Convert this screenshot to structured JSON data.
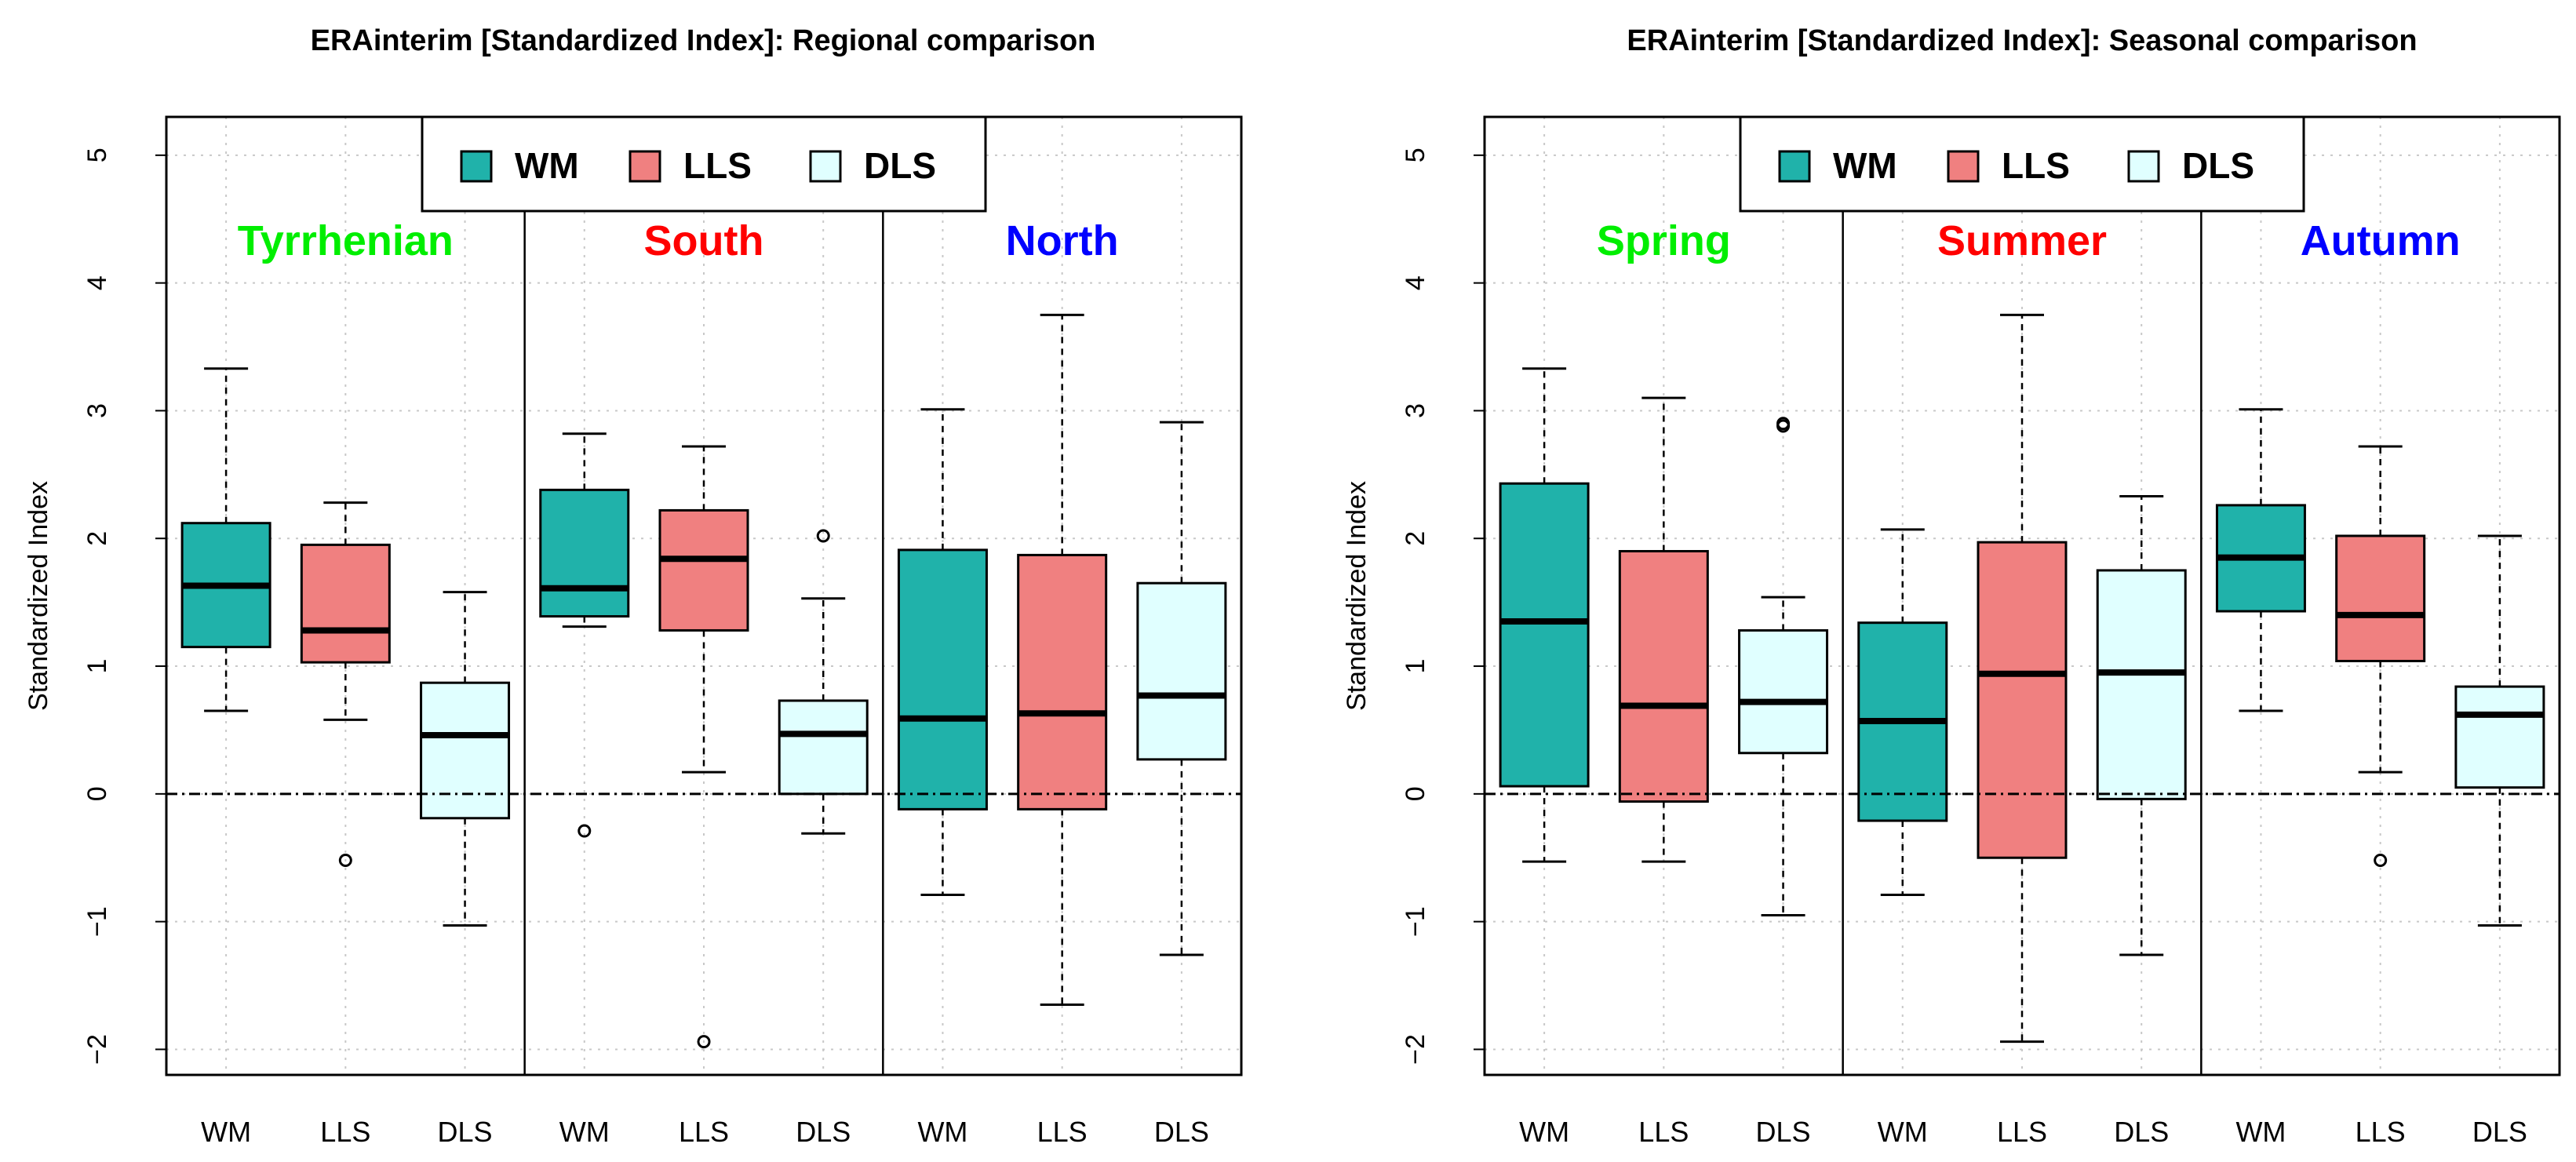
{
  "colors": {
    "WM": "#20b2aa",
    "LLS": "#f08080",
    "DLS": "#e0ffff",
    "green": "#00ee00",
    "red": "#ff0000",
    "blue": "#0000ff"
  },
  "chart_data": [
    {
      "type": "boxplot",
      "title": "ERAinterim [Standardized Index]: Regional comparison",
      "ylabel": "Standardized Index",
      "xlabel": "",
      "ylim": [
        -2.2,
        5.3
      ],
      "yticks": [
        -2,
        -1,
        0,
        1,
        2,
        3,
        4,
        5
      ],
      "ytick_labels": [
        "−2",
        "−1",
        "0",
        "1",
        "2",
        "3",
        "4",
        "5"
      ],
      "grid": true,
      "reference_line": 0,
      "legend": {
        "placement": "top-center",
        "entries": [
          "WM",
          "LLS",
          "DLS"
        ]
      },
      "groups": [
        {
          "name": "Tyrrhenian",
          "color_key": "green"
        },
        {
          "name": "South",
          "color_key": "red"
        },
        {
          "name": "North",
          "color_key": "blue"
        }
      ],
      "boxes": [
        {
          "label": "WM",
          "group": 0,
          "series": "WM",
          "whisker_low": 0.65,
          "q1": 1.15,
          "median": 1.63,
          "q3": 2.12,
          "whisker_high": 3.33,
          "outliers": []
        },
        {
          "label": "LLS",
          "group": 0,
          "series": "LLS",
          "whisker_low": 0.58,
          "q1": 1.03,
          "median": 1.28,
          "q3": 1.95,
          "whisker_high": 2.28,
          "outliers": [
            -0.52
          ]
        },
        {
          "label": "DLS",
          "group": 0,
          "series": "DLS",
          "whisker_low": -1.03,
          "q1": -0.19,
          "median": 0.46,
          "q3": 0.87,
          "whisker_high": 1.58,
          "outliers": []
        },
        {
          "label": "WM",
          "group": 1,
          "series": "WM",
          "whisker_low": 1.31,
          "q1": 1.39,
          "median": 1.61,
          "q3": 2.38,
          "whisker_high": 2.82,
          "outliers": [
            -0.29
          ]
        },
        {
          "label": "LLS",
          "group": 1,
          "series": "LLS",
          "whisker_low": 0.17,
          "q1": 1.28,
          "median": 1.84,
          "q3": 2.22,
          "whisker_high": 2.72,
          "outliers": [
            -1.94
          ]
        },
        {
          "label": "DLS",
          "group": 1,
          "series": "DLS",
          "whisker_low": -0.31,
          "q1": 0.0,
          "median": 0.47,
          "q3": 0.73,
          "whisker_high": 1.53,
          "outliers": [
            2.02
          ]
        },
        {
          "label": "WM",
          "group": 2,
          "series": "WM",
          "whisker_low": -0.79,
          "q1": -0.12,
          "median": 0.59,
          "q3": 1.91,
          "whisker_high": 3.01,
          "outliers": []
        },
        {
          "label": "LLS",
          "group": 2,
          "series": "LLS",
          "whisker_low": -1.65,
          "q1": -0.12,
          "median": 0.63,
          "q3": 1.87,
          "whisker_high": 3.75,
          "outliers": []
        },
        {
          "label": "DLS",
          "group": 2,
          "series": "DLS",
          "whisker_low": -1.26,
          "q1": 0.27,
          "median": 0.77,
          "q3": 1.65,
          "whisker_high": 2.91,
          "outliers": []
        }
      ]
    },
    {
      "type": "boxplot",
      "title": "ERAinterim [Standardized Index]: Seasonal comparison",
      "ylabel": "Standardized Index",
      "xlabel": "",
      "ylim": [
        -2.2,
        5.3
      ],
      "yticks": [
        -2,
        -1,
        0,
        1,
        2,
        3,
        4,
        5
      ],
      "ytick_labels": [
        "−2",
        "−1",
        "0",
        "1",
        "2",
        "3",
        "4",
        "5"
      ],
      "grid": true,
      "reference_line": 0,
      "legend": {
        "placement": "top-center",
        "entries": [
          "WM",
          "LLS",
          "DLS"
        ]
      },
      "groups": [
        {
          "name": "Spring",
          "color_key": "green"
        },
        {
          "name": "Summer",
          "color_key": "red"
        },
        {
          "name": "Autumn",
          "color_key": "blue"
        }
      ],
      "boxes": [
        {
          "label": "WM",
          "group": 0,
          "series": "WM",
          "whisker_low": -0.53,
          "q1": 0.06,
          "median": 1.35,
          "q3": 2.43,
          "whisker_high": 3.33,
          "outliers": []
        },
        {
          "label": "LLS",
          "group": 0,
          "series": "LLS",
          "whisker_low": -0.53,
          "q1": -0.06,
          "median": 0.69,
          "q3": 1.9,
          "whisker_high": 3.1,
          "outliers": []
        },
        {
          "label": "DLS",
          "group": 0,
          "series": "DLS",
          "whisker_low": -0.95,
          "q1": 0.32,
          "median": 0.72,
          "q3": 1.28,
          "whisker_high": 1.54,
          "outliers": [
            2.88,
            2.9
          ]
        },
        {
          "label": "WM",
          "group": 1,
          "series": "WM",
          "whisker_low": -0.79,
          "q1": -0.21,
          "median": 0.57,
          "q3": 1.34,
          "whisker_high": 2.07,
          "outliers": []
        },
        {
          "label": "LLS",
          "group": 1,
          "series": "LLS",
          "whisker_low": -1.94,
          "q1": -0.5,
          "median": 0.94,
          "q3": 1.97,
          "whisker_high": 3.75,
          "outliers": []
        },
        {
          "label": "DLS",
          "group": 1,
          "series": "DLS",
          "whisker_low": -1.26,
          "q1": -0.04,
          "median": 0.95,
          "q3": 1.75,
          "whisker_high": 2.33,
          "outliers": []
        },
        {
          "label": "WM",
          "group": 2,
          "series": "WM",
          "whisker_low": 0.65,
          "q1": 1.43,
          "median": 1.85,
          "q3": 2.26,
          "whisker_high": 3.01,
          "outliers": []
        },
        {
          "label": "LLS",
          "group": 2,
          "series": "LLS",
          "whisker_low": 0.17,
          "q1": 1.04,
          "median": 1.4,
          "q3": 2.02,
          "whisker_high": 2.72,
          "outliers": [
            -0.52
          ]
        },
        {
          "label": "DLS",
          "group": 2,
          "series": "DLS",
          "whisker_low": -1.03,
          "q1": 0.05,
          "median": 0.62,
          "q3": 0.84,
          "whisker_high": 2.02,
          "outliers": []
        }
      ]
    }
  ]
}
